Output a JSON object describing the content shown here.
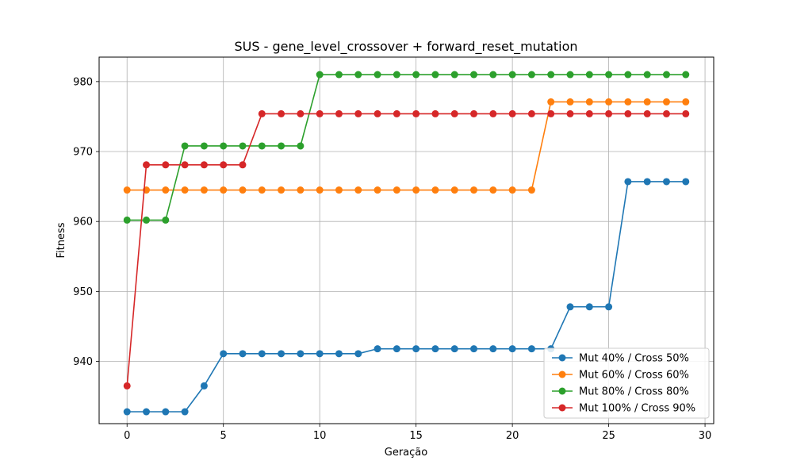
{
  "chart_data": {
    "type": "line",
    "title": "SUS - gene_level_crossover + forward_reset_mutation",
    "xlabel": "Geração",
    "ylabel": "Fitness",
    "xlim": [
      -1.45,
      30.45
    ],
    "ylim": [
      931.1,
      983.5
    ],
    "xticks": [
      0,
      5,
      10,
      15,
      20,
      25,
      30
    ],
    "yticks": [
      940,
      950,
      960,
      970,
      980
    ],
    "grid": true,
    "legend_position": "lower-right",
    "x": [
      0,
      1,
      2,
      3,
      4,
      5,
      6,
      7,
      8,
      9,
      10,
      11,
      12,
      13,
      14,
      15,
      16,
      17,
      18,
      19,
      20,
      21,
      22,
      23,
      24,
      25,
      26,
      27,
      28,
      29
    ],
    "series": [
      {
        "name": "Mut 40% / Cross 50%",
        "color": "#1f77b4",
        "values": [
          932.8,
          932.8,
          932.8,
          932.8,
          936.5,
          941.1,
          941.1,
          941.1,
          941.1,
          941.1,
          941.1,
          941.1,
          941.1,
          941.8,
          941.8,
          941.8,
          941.8,
          941.8,
          941.8,
          941.8,
          941.8,
          941.8,
          941.8,
          947.8,
          947.8,
          947.8,
          965.7,
          965.7,
          965.7,
          965.7
        ]
      },
      {
        "name": "Mut 60% / Cross 60%",
        "color": "#ff7f0e",
        "values": [
          964.5,
          964.5,
          964.5,
          964.5,
          964.5,
          964.5,
          964.5,
          964.5,
          964.5,
          964.5,
          964.5,
          964.5,
          964.5,
          964.5,
          964.5,
          964.5,
          964.5,
          964.5,
          964.5,
          964.5,
          964.5,
          964.5,
          977.1,
          977.1,
          977.1,
          977.1,
          977.1,
          977.1,
          977.1,
          977.1
        ]
      },
      {
        "name": "Mut 80% / Cross 80%",
        "color": "#2ca02c",
        "values": [
          960.2,
          960.2,
          960.2,
          970.8,
          970.8,
          970.8,
          970.8,
          970.8,
          970.8,
          970.8,
          981.0,
          981.0,
          981.0,
          981.0,
          981.0,
          981.0,
          981.0,
          981.0,
          981.0,
          981.0,
          981.0,
          981.0,
          981.0,
          981.0,
          981.0,
          981.0,
          981.0,
          981.0,
          981.0,
          981.0
        ]
      },
      {
        "name": "Mut 100% / Cross 90%",
        "color": "#d62728",
        "values": [
          936.5,
          968.1,
          968.1,
          968.1,
          968.1,
          968.1,
          968.1,
          975.4,
          975.4,
          975.4,
          975.4,
          975.4,
          975.4,
          975.4,
          975.4,
          975.4,
          975.4,
          975.4,
          975.4,
          975.4,
          975.4,
          975.4,
          975.4,
          975.4,
          975.4,
          975.4,
          975.4,
          975.4,
          975.4,
          975.4
        ]
      }
    ]
  }
}
